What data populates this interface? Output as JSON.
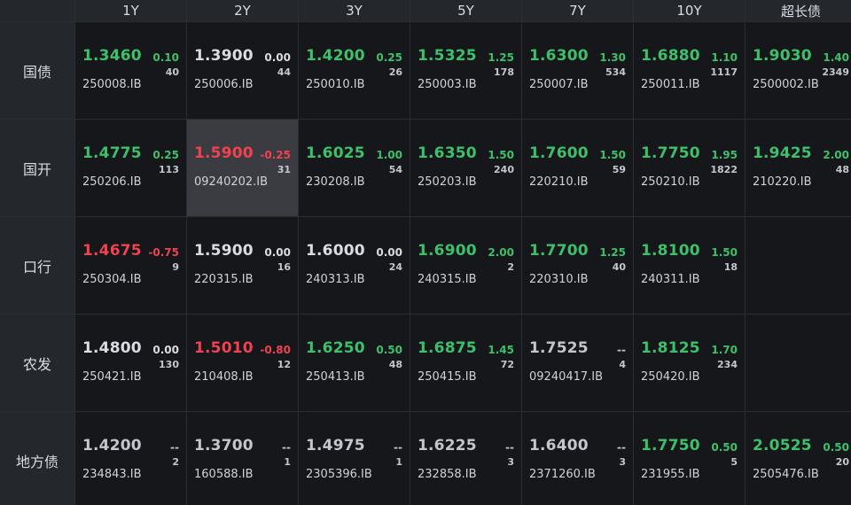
{
  "columns": [
    "1Y",
    "2Y",
    "3Y",
    "5Y",
    "7Y",
    "10Y",
    "超长债"
  ],
  "rows": [
    {
      "label": "国债",
      "cells": [
        {
          "yield": "1.3460",
          "change": "0.10",
          "volume": "40",
          "code": "250008.IB",
          "dir": "up"
        },
        {
          "yield": "1.3900",
          "change": "0.00",
          "volume": "44",
          "code": "250006.IB",
          "dir": "flat"
        },
        {
          "yield": "1.4200",
          "change": "0.25",
          "volume": "26",
          "code": "250010.IB",
          "dir": "up"
        },
        {
          "yield": "1.5325",
          "change": "1.25",
          "volume": "178",
          "code": "250003.IB",
          "dir": "up"
        },
        {
          "yield": "1.6300",
          "change": "1.30",
          "volume": "534",
          "code": "250007.IB",
          "dir": "up"
        },
        {
          "yield": "1.6880",
          "change": "1.10",
          "volume": "1117",
          "code": "250011.IB",
          "dir": "up"
        },
        {
          "yield": "1.9030",
          "change": "1.40",
          "volume": "2349",
          "code": "2500002.IB",
          "dir": "up"
        }
      ]
    },
    {
      "label": "国开",
      "cells": [
        {
          "yield": "1.4775",
          "change": "0.25",
          "volume": "113",
          "code": "250206.IB",
          "dir": "up"
        },
        {
          "yield": "1.5900",
          "change": "-0.25",
          "volume": "31",
          "code": "09240202.IB",
          "dir": "down",
          "highlight": true
        },
        {
          "yield": "1.6025",
          "change": "1.00",
          "volume": "54",
          "code": "230208.IB",
          "dir": "up"
        },
        {
          "yield": "1.6350",
          "change": "1.50",
          "volume": "240",
          "code": "250203.IB",
          "dir": "up"
        },
        {
          "yield": "1.7600",
          "change": "1.50",
          "volume": "59",
          "code": "220210.IB",
          "dir": "up"
        },
        {
          "yield": "1.7750",
          "change": "1.95",
          "volume": "1822",
          "code": "250210.IB",
          "dir": "up"
        },
        {
          "yield": "1.9425",
          "change": "2.00",
          "volume": "48",
          "code": "210220.IB",
          "dir": "up"
        }
      ]
    },
    {
      "label": "口行",
      "cells": [
        {
          "yield": "1.4675",
          "change": "-0.75",
          "volume": "9",
          "code": "250304.IB",
          "dir": "down"
        },
        {
          "yield": "1.5900",
          "change": "0.00",
          "volume": "16",
          "code": "220315.IB",
          "dir": "flat"
        },
        {
          "yield": "1.6000",
          "change": "0.00",
          "volume": "24",
          "code": "240313.IB",
          "dir": "flat"
        },
        {
          "yield": "1.6900",
          "change": "2.00",
          "volume": "2",
          "code": "240315.IB",
          "dir": "up"
        },
        {
          "yield": "1.7700",
          "change": "1.25",
          "volume": "40",
          "code": "220310.IB",
          "dir": "up"
        },
        {
          "yield": "1.8100",
          "change": "1.50",
          "volume": "18",
          "code": "240311.IB",
          "dir": "up"
        },
        null
      ]
    },
    {
      "label": "农发",
      "cells": [
        {
          "yield": "1.4800",
          "change": "0.00",
          "volume": "130",
          "code": "250421.IB",
          "dir": "flat"
        },
        {
          "yield": "1.5010",
          "change": "-0.80",
          "volume": "12",
          "code": "210408.IB",
          "dir": "down"
        },
        {
          "yield": "1.6250",
          "change": "0.50",
          "volume": "48",
          "code": "250413.IB",
          "dir": "up"
        },
        {
          "yield": "1.6875",
          "change": "1.45",
          "volume": "72",
          "code": "250415.IB",
          "dir": "up"
        },
        {
          "yield": "1.7525",
          "change": "--",
          "volume": "4",
          "code": "09240417.IB",
          "dir": "none"
        },
        {
          "yield": "1.8125",
          "change": "1.70",
          "volume": "234",
          "code": "250420.IB",
          "dir": "up"
        },
        null
      ]
    },
    {
      "label": "地方债",
      "cells": [
        {
          "yield": "1.4200",
          "change": "--",
          "volume": "2",
          "code": "234843.IB",
          "dir": "none"
        },
        {
          "yield": "1.3700",
          "change": "--",
          "volume": "1",
          "code": "160588.IB",
          "dir": "none"
        },
        {
          "yield": "1.4975",
          "change": "--",
          "volume": "1",
          "code": "2305396.IB",
          "dir": "none"
        },
        {
          "yield": "1.6225",
          "change": "--",
          "volume": "3",
          "code": "232858.IB",
          "dir": "none"
        },
        {
          "yield": "1.6400",
          "change": "--",
          "volume": "3",
          "code": "2371260.IB",
          "dir": "none"
        },
        {
          "yield": "1.7750",
          "change": "0.50",
          "volume": "5",
          "code": "231955.IB",
          "dir": "up"
        },
        {
          "yield": "2.0525",
          "change": "0.50",
          "volume": "20",
          "code": "2505476.IB",
          "dir": "up"
        }
      ]
    }
  ],
  "colors": {
    "up": "#3ec06b",
    "down": "#f0424f",
    "flat": "#d9dde3",
    "none": "#c3c7cd",
    "highlight_bg": "#3a3c41"
  }
}
